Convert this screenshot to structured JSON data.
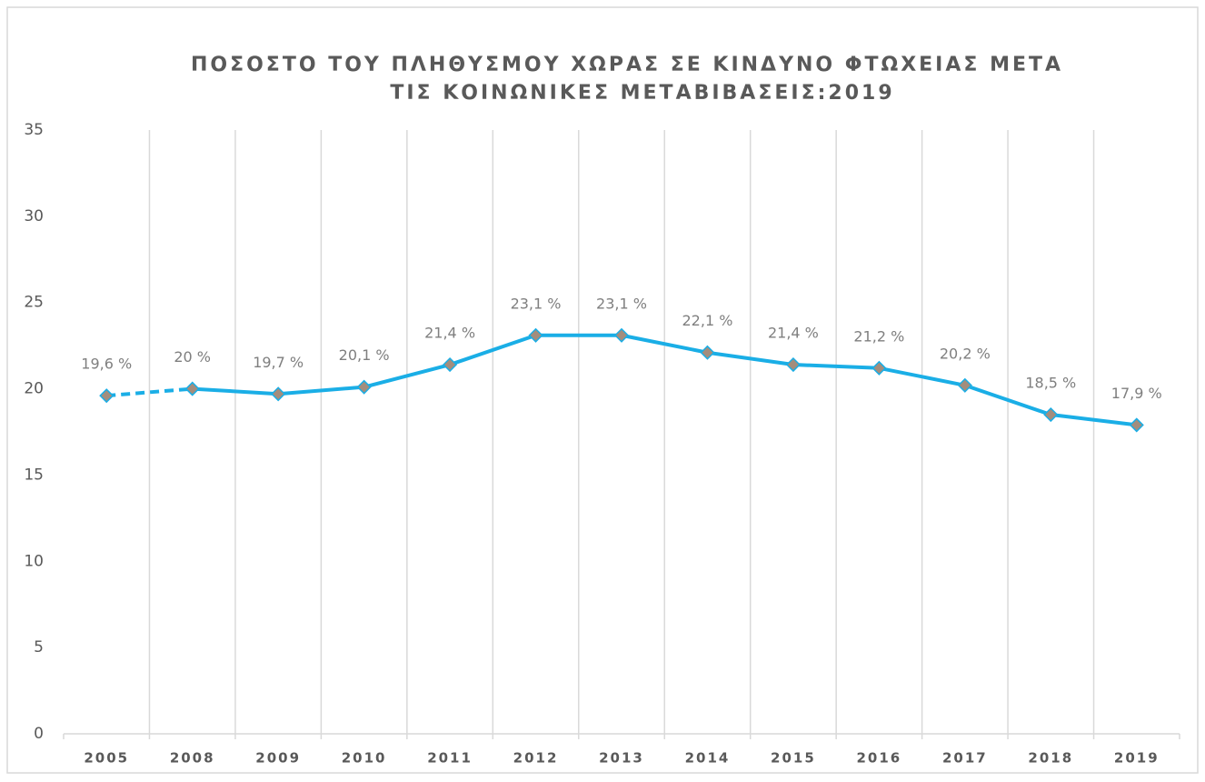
{
  "chart_data": {
    "type": "line",
    "title": [
      "ΠΟΣΟΣΤΟ ΤΟΥ ΠΛΗΘΥΣΜΟΥ ΧΩΡΑΣ ΣΕ ΚΙΝΔΥΝΟ ΦΤΩΧΕΙΑΣ ΜΕΤΑ",
      "ΤΙΣ ΚΟΙΝΩΝΙΚΕΣ ΜΕΤΑΒΙΒΑΣΕΙΣ:2019"
    ],
    "categories": [
      "2005",
      "2008",
      "2009",
      "2010",
      "2011",
      "2012",
      "2013",
      "2014",
      "2015",
      "2016",
      "2017",
      "2018",
      "2019"
    ],
    "series": [
      {
        "color": "#1aaee6",
        "marker_color": "#a38d7d",
        "values": [
          19.6,
          20,
          19.7,
          20.1,
          21.4,
          23.1,
          23.1,
          22.1,
          21.4,
          21.2,
          20.2,
          18.5,
          17.9
        ],
        "value_labels": [
          "19,6 %",
          "20 %",
          "19,7 %",
          "20,1 %",
          "21,4 %",
          "23,1 %",
          "23,1 %",
          "22,1 %",
          "21,4 %",
          "21,2 %",
          "20,2 %",
          "18,5 %",
          "17,9 %"
        ],
        "dashed_first_segment": true
      }
    ],
    "ylim": [
      0,
      35
    ],
    "yticks": [
      0,
      5,
      10,
      15,
      20,
      25,
      30,
      35
    ],
    "grid": "vertical"
  }
}
